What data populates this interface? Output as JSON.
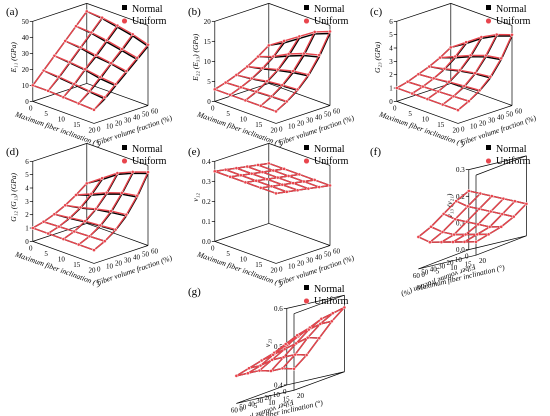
{
  "chart_data": [
    {
      "type": "surface3d",
      "panel": "(a)",
      "zlabel": "E₁₁ (GPa)",
      "xlabel": "Maximum fiber inclination (°)",
      "ylabel": "Fiber volume fraction (%)",
      "zticks": [
        "0",
        "10",
        "20",
        "30",
        "40",
        "50"
      ],
      "xticks": [
        "0",
        "5",
        "10",
        "15",
        "20"
      ],
      "yticks": [
        "0",
        "10",
        "20",
        "30",
        "40",
        "50",
        "60"
      ],
      "legend": [
        "Normal",
        "Uniform"
      ],
      "surface": {
        "normal": [
          [
            10,
            17,
            24,
            31,
            38,
            45
          ],
          [
            10,
            16,
            23,
            30,
            37,
            44
          ],
          [
            9.5,
            15,
            22,
            28,
            35,
            42
          ],
          [
            9,
            14,
            20,
            27,
            33,
            40
          ],
          [
            8.5,
            13,
            19,
            25,
            31,
            37
          ]
        ],
        "uniform": [
          [
            10,
            17,
            24,
            31,
            38,
            45
          ],
          [
            10,
            16.5,
            23.5,
            30.5,
            37.5,
            44.5
          ],
          [
            9.5,
            15.5,
            22.5,
            29,
            36,
            43
          ],
          [
            9,
            14.5,
            21,
            27.5,
            34,
            41
          ],
          [
            8.5,
            14,
            20,
            26,
            32,
            38
          ]
        ]
      },
      "zlim": [
        0,
        50
      ]
    },
    {
      "type": "surface3d",
      "panel": "(b)",
      "zlabel": "E₂₂ (E₃₃) (GPa)",
      "xlabel": "Maximum fiber inclination (°)",
      "ylabel": "Fiber volume fraction (%)",
      "zticks": [
        "0",
        "5",
        "10",
        "15",
        "20"
      ],
      "xticks": [
        "0",
        "5",
        "10",
        "15",
        "20"
      ],
      "yticks": [
        "0",
        "10",
        "20",
        "30",
        "40",
        "50",
        "60"
      ],
      "legend": [
        "Normal",
        "Uniform"
      ],
      "surface": {
        "normal": [
          [
            3,
            3.8,
            4.8,
            6,
            7.6,
            9.5
          ],
          [
            3,
            4,
            5.2,
            6.8,
            8.8,
            11.5
          ],
          [
            3,
            4.2,
            5.8,
            7.8,
            10.5,
            14
          ],
          [
            3,
            4.4,
            6.2,
            8.6,
            12,
            16.5
          ],
          [
            3,
            4.5,
            6.5,
            9.2,
            13,
            18
          ]
        ],
        "uniform": [
          [
            3,
            3.8,
            4.8,
            6,
            7.6,
            9.5
          ],
          [
            3,
            4,
            5.3,
            7,
            9,
            12
          ],
          [
            3,
            4.3,
            6,
            8,
            11,
            14.5
          ],
          [
            3,
            4.5,
            6.4,
            9,
            12.5,
            17
          ],
          [
            3,
            4.6,
            6.7,
            9.5,
            13.5,
            18.5
          ]
        ]
      },
      "zlim": [
        0,
        20
      ]
    },
    {
      "type": "surface3d",
      "panel": "(c)",
      "zlabel": "G₂₃ (GPa)",
      "xlabel": "Maximum fiber inclination (°)",
      "ylabel": "Fiber volume fraction (%)",
      "zticks": [
        "0",
        "1",
        "2",
        "3",
        "4",
        "5",
        "6"
      ],
      "xticks": [
        "0",
        "5",
        "10",
        "15",
        "20"
      ],
      "yticks": [
        "0",
        "10",
        "20",
        "30",
        "40",
        "50",
        "60"
      ],
      "legend": [
        "Normal",
        "Uniform"
      ],
      "surface": {
        "normal": [
          [
            1,
            1.2,
            1.5,
            1.8,
            2.2,
            2.7
          ],
          [
            1,
            1.25,
            1.6,
            2,
            2.6,
            3.4
          ],
          [
            1,
            1.3,
            1.7,
            2.3,
            3.1,
            4.2
          ],
          [
            1,
            1.35,
            1.8,
            2.5,
            3.5,
            4.8
          ],
          [
            1,
            1.4,
            1.9,
            2.6,
            3.7,
            5.2
          ]
        ],
        "uniform": [
          [
            1,
            1.2,
            1.5,
            1.8,
            2.2,
            2.7
          ],
          [
            1,
            1.25,
            1.6,
            2.05,
            2.7,
            3.5
          ],
          [
            1,
            1.3,
            1.75,
            2.35,
            3.2,
            4.3
          ],
          [
            1,
            1.35,
            1.85,
            2.55,
            3.6,
            4.9
          ],
          [
            1,
            1.4,
            1.95,
            2.7,
            3.8,
            5.3
          ]
        ]
      },
      "zlim": [
        0,
        6
      ]
    },
    {
      "type": "surface3d",
      "panel": "(d)",
      "zlabel": "G₁₂ (G₁₃) (GPa)",
      "xlabel": "Maximum fiber inclination (°)",
      "ylabel": "Fiber volume fraction (%)",
      "zticks": [
        "0",
        "1",
        "2",
        "3",
        "4",
        "5",
        "6"
      ],
      "xticks": [
        "0",
        "5",
        "10",
        "15",
        "20"
      ],
      "yticks": [
        "0",
        "10",
        "20",
        "30",
        "40",
        "50",
        "60"
      ],
      "legend": [
        "Normal",
        "Uniform"
      ],
      "surface": {
        "normal": [
          [
            1,
            1.2,
            1.5,
            1.9,
            2.4,
            3
          ],
          [
            1,
            1.25,
            1.6,
            2.1,
            2.8,
            3.7
          ],
          [
            1,
            1.3,
            1.75,
            2.4,
            3.3,
            4.5
          ],
          [
            1,
            1.35,
            1.85,
            2.6,
            3.7,
            5
          ],
          [
            1,
            1.4,
            1.95,
            2.75,
            3.9,
            5.4
          ]
        ],
        "uniform": [
          [
            1,
            1.2,
            1.5,
            1.9,
            2.4,
            3
          ],
          [
            1,
            1.25,
            1.65,
            2.15,
            2.9,
            3.8
          ],
          [
            1,
            1.3,
            1.8,
            2.45,
            3.4,
            4.6
          ],
          [
            1,
            1.35,
            1.9,
            2.7,
            3.8,
            5.1
          ],
          [
            1,
            1.4,
            2,
            2.85,
            4,
            5.5
          ]
        ]
      },
      "zlim": [
        0,
        6
      ]
    },
    {
      "type": "surface3d",
      "panel": "(e)",
      "zlabel": "ν₁₂",
      "xlabel": "Maximum fiber inclination (°)",
      "ylabel": "Fiber volume fraction (%)",
      "zticks": [
        "0.0",
        "0.1",
        "0.2",
        "0.3",
        "0.4"
      ],
      "xticks": [
        "0",
        "5",
        "10",
        "15",
        "20"
      ],
      "yticks": [
        "0",
        "10",
        "20",
        "30",
        "40",
        "50",
        "60"
      ],
      "legend": [
        "Normal",
        "Uniform"
      ],
      "surface": {
        "normal": [
          [
            0.35,
            0.34,
            0.33,
            0.32,
            0.31,
            0.3
          ],
          [
            0.35,
            0.34,
            0.33,
            0.32,
            0.31,
            0.3
          ],
          [
            0.35,
            0.34,
            0.33,
            0.32,
            0.31,
            0.3
          ],
          [
            0.35,
            0.34,
            0.33,
            0.32,
            0.31,
            0.3
          ],
          [
            0.35,
            0.34,
            0.33,
            0.32,
            0.31,
            0.3
          ]
        ],
        "uniform": [
          [
            0.35,
            0.34,
            0.33,
            0.32,
            0.31,
            0.3
          ],
          [
            0.35,
            0.34,
            0.33,
            0.32,
            0.31,
            0.3
          ],
          [
            0.35,
            0.34,
            0.33,
            0.32,
            0.31,
            0.3
          ],
          [
            0.35,
            0.34,
            0.33,
            0.32,
            0.31,
            0.3
          ],
          [
            0.35,
            0.34,
            0.33,
            0.32,
            0.31,
            0.3
          ]
        ]
      },
      "zlim": [
        0,
        0.4
      ]
    },
    {
      "type": "surface3d",
      "panel": "(f)",
      "zlabel": "ν₁₃ (ν₂₁)",
      "xlabel": "Fiber volume fraction (%)",
      "ylabel": "Maximum fiber inclination (°)",
      "zticks": [
        "0.0",
        "0.1",
        "0.2",
        "0.3"
      ],
      "xticks": [
        "0",
        "10",
        "20",
        "30",
        "40",
        "50",
        "60"
      ],
      "yticks": [
        "0",
        "5",
        "10",
        "15",
        "20"
      ],
      "legend": [
        "Normal",
        "Uniform"
      ],
      "surface": {
        "normal": [
          [
            0.22,
            0.2,
            0.18,
            0.16,
            0.14,
            0.12
          ],
          [
            0.2,
            0.17,
            0.15,
            0.13,
            0.11,
            0.09
          ],
          [
            0.17,
            0.14,
            0.12,
            0.1,
            0.08,
            0.07
          ],
          [
            0.14,
            0.11,
            0.09,
            0.08,
            0.07,
            0.06
          ],
          [
            0.12,
            0.09,
            0.08,
            0.07,
            0.06,
            0.05
          ]
        ],
        "uniform": [
          [
            0.22,
            0.2,
            0.18,
            0.16,
            0.14,
            0.12
          ],
          [
            0.2,
            0.17,
            0.15,
            0.13,
            0.11,
            0.09
          ],
          [
            0.17,
            0.14,
            0.12,
            0.1,
            0.08,
            0.07
          ],
          [
            0.14,
            0.11,
            0.09,
            0.08,
            0.07,
            0.06
          ],
          [
            0.12,
            0.09,
            0.08,
            0.07,
            0.06,
            0.05
          ]
        ]
      },
      "zlim": [
        0,
        0.3
      ]
    },
    {
      "type": "surface3d",
      "panel": "(g)",
      "zlabel": "ν₂₃",
      "xlabel": "Fiber volume fraction (%)",
      "ylabel": "Maximum fiber inclination (°)",
      "zticks": [
        "0.4",
        "0.5",
        "0.6"
      ],
      "xticks": [
        "0",
        "10",
        "20",
        "30",
        "40",
        "50",
        "60"
      ],
      "yticks": [
        "0",
        "5",
        "10",
        "15",
        "20"
      ],
      "legend": [
        "Normal",
        "Uniform"
      ],
      "surface": {
        "normal": [
          [
            0.48,
            0.5,
            0.52,
            0.54,
            0.55,
            0.56
          ],
          [
            0.47,
            0.49,
            0.51,
            0.52,
            0.53,
            0.53
          ],
          [
            0.46,
            0.47,
            0.48,
            0.49,
            0.5,
            0.49
          ],
          [
            0.45,
            0.45,
            0.46,
            0.46,
            0.46,
            0.45
          ],
          [
            0.44,
            0.44,
            0.44,
            0.43,
            0.43,
            0.42
          ]
        ],
        "uniform": [
          [
            0.48,
            0.5,
            0.52,
            0.54,
            0.55,
            0.56
          ],
          [
            0.47,
            0.49,
            0.51,
            0.52,
            0.53,
            0.53
          ],
          [
            0.46,
            0.47,
            0.48,
            0.49,
            0.5,
            0.49
          ],
          [
            0.45,
            0.45,
            0.46,
            0.46,
            0.46,
            0.45
          ],
          [
            0.44,
            0.44,
            0.44,
            0.43,
            0.43,
            0.42
          ]
        ]
      },
      "zlim": [
        0.35,
        0.6
      ]
    }
  ]
}
